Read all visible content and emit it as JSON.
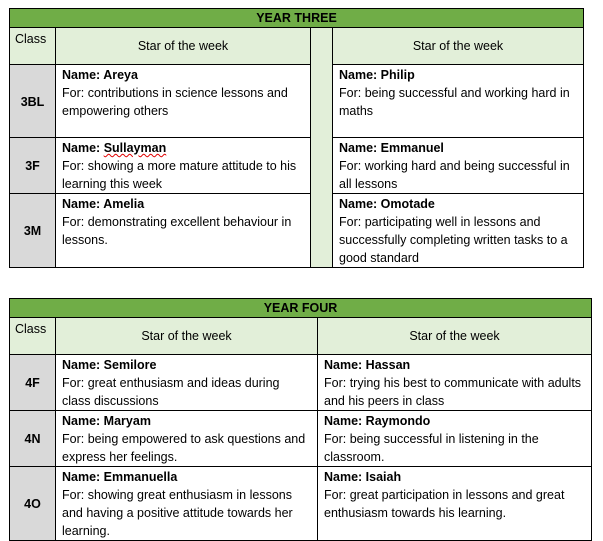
{
  "tables": [
    {
      "title": "YEAR THREE",
      "class_header": "Class",
      "star_header_left": "Star of the week",
      "star_header_right": "Star of the week",
      "rows": [
        {
          "class": "3BL",
          "left": {
            "name": "Name: Areya",
            "for": "For: contributions in science lessons and empowering others"
          },
          "right": {
            "name": "Name: Philip",
            "for": "For: being successful and working hard in maths"
          }
        },
        {
          "class": "3F",
          "left": {
            "name_prefix": "Name: ",
            "name_value": "Sullayman",
            "for": "For: showing a more mature attitude to his learning this week"
          },
          "right": {
            "name": "Name: Emmanuel",
            "for": "For: working hard and being successful in all lessons"
          }
        },
        {
          "class": "3M",
          "left": {
            "name": "Name: Amelia",
            "for": "For: demonstrating excellent behaviour in lessons."
          },
          "right": {
            "name": "Name: Omotade",
            "for": "For: participating well in lessons and successfully completing written tasks to a good standard"
          }
        }
      ]
    },
    {
      "title": "YEAR FOUR",
      "class_header": "Class",
      "star_header_left": "Star of the week",
      "star_header_right": "Star of the week",
      "rows": [
        {
          "class": "4F",
          "left": {
            "name": "Name: Semilore",
            "for": "For: great enthusiasm and ideas during class discussions"
          },
          "right": {
            "name": "Name: Hassan",
            "for": "For: trying his best to communicate with adults and his peers in class"
          }
        },
        {
          "class": "4N",
          "left": {
            "name": "Name: Maryam",
            "for": "For: being empowered to ask questions and express her feelings."
          },
          "right": {
            "name": "Name: Raymondo",
            "for": "For: being successful in listening in the classroom."
          }
        },
        {
          "class": "4O",
          "left": {
            "name": "Name: Emmanuella",
            "for": "For: showing great enthusiasm in lessons and having a positive attitude towards her learning."
          },
          "right": {
            "name": "Name: Isaiah",
            "for": "For: great participation in lessons and great enthusiasm towards his learning."
          }
        }
      ]
    }
  ],
  "colors": {
    "title_bg": "#70ad47",
    "header_bg": "#e2efd9",
    "class_bg": "#d9d9d9"
  }
}
